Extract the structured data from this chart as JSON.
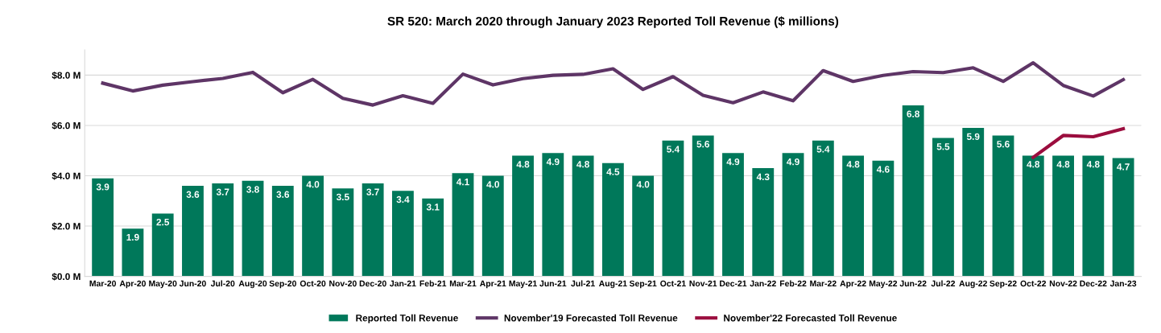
{
  "chart_data": {
    "type": "bar",
    "title": "SR 520: March 2020 through January 2023 Reported Toll Revenue ($ millions)",
    "categories": [
      "Mar-20",
      "Apr-20",
      "May-20",
      "Jun-20",
      "Jul-20",
      "Aug-20",
      "Sep-20",
      "Oct-20",
      "Nov-20",
      "Dec-20",
      "Jan-21",
      "Feb-21",
      "Mar-21",
      "Apr-21",
      "May-21",
      "Jun-21",
      "Jul-21",
      "Aug-21",
      "Sep-21",
      "Oct-21",
      "Nov-21",
      "Dec-21",
      "Jan-22",
      "Feb-22",
      "Mar-22",
      "Apr-22",
      "May-22",
      "Jun-22",
      "Jul-22",
      "Aug-22",
      "Sep-22",
      "Oct-22",
      "Nov-22",
      "Dec-22",
      "Jan-23"
    ],
    "series": [
      {
        "name": "Reported Toll Revenue",
        "color": "#00785a",
        "value_labels": [
          "3.9",
          "1.9",
          "2.5",
          "3.6",
          "3.7",
          "3.8",
          "3.6",
          "4.0",
          "3.5",
          "3.7",
          "3.4",
          "3.1",
          "4.1",
          "4.0",
          "4.8",
          "4.9",
          "4.8",
          "4.5",
          "4.0",
          "5.4",
          "5.6",
          "4.9",
          "4.3",
          "4.9",
          "5.4",
          "4.8",
          "4.6",
          "6.8",
          "5.5",
          "5.9",
          "5.6",
          "4.8",
          "4.8",
          "4.8",
          "4.7"
        ],
        "values": [
          3.9,
          1.9,
          2.5,
          3.6,
          3.7,
          3.8,
          3.6,
          4.0,
          3.5,
          3.7,
          3.4,
          3.1,
          4.1,
          4.0,
          4.8,
          4.9,
          4.8,
          4.5,
          4.0,
          5.4,
          5.6,
          4.9,
          4.3,
          4.9,
          5.4,
          4.8,
          4.6,
          6.8,
          5.5,
          5.9,
          5.6,
          4.8,
          4.8,
          4.8,
          4.7
        ]
      },
      {
        "name": "November'19 Forecasted Toll Revenue",
        "type": "line",
        "color": "#5e3566",
        "values": [
          7.68,
          7.37,
          7.6,
          7.74,
          7.87,
          8.11,
          7.3,
          7.83,
          7.08,
          6.81,
          7.18,
          6.88,
          8.04,
          7.61,
          7.86,
          7.99,
          8.03,
          8.25,
          7.43,
          7.94,
          7.2,
          6.9,
          7.33,
          6.98,
          8.18,
          7.75,
          7.99,
          8.14,
          8.1,
          8.29,
          7.75,
          8.49,
          7.59,
          7.17,
          7.82
        ]
      },
      {
        "name": "November'22 Forecasted Toll Revenue",
        "type": "line",
        "color": "#9b0d3e",
        "values": [
          null,
          null,
          null,
          null,
          null,
          null,
          null,
          null,
          null,
          null,
          null,
          null,
          null,
          null,
          null,
          null,
          null,
          null,
          null,
          null,
          null,
          null,
          null,
          null,
          null,
          null,
          null,
          null,
          null,
          null,
          null,
          4.73,
          5.6,
          5.55,
          5.87
        ]
      }
    ],
    "ylim": [
      0,
      9.0
    ],
    "yticks": [
      {
        "value": 0,
        "label": "$0.0 M"
      },
      {
        "value": 2,
        "label": "$2.0 M"
      },
      {
        "value": 4,
        "label": "$4.0 M"
      },
      {
        "value": 6,
        "label": "$6.0 M"
      },
      {
        "value": 8,
        "label": "$8.0 M"
      }
    ],
    "grid": "y",
    "legend": "bottom",
    "marker": "none",
    "line_style": "solid"
  }
}
